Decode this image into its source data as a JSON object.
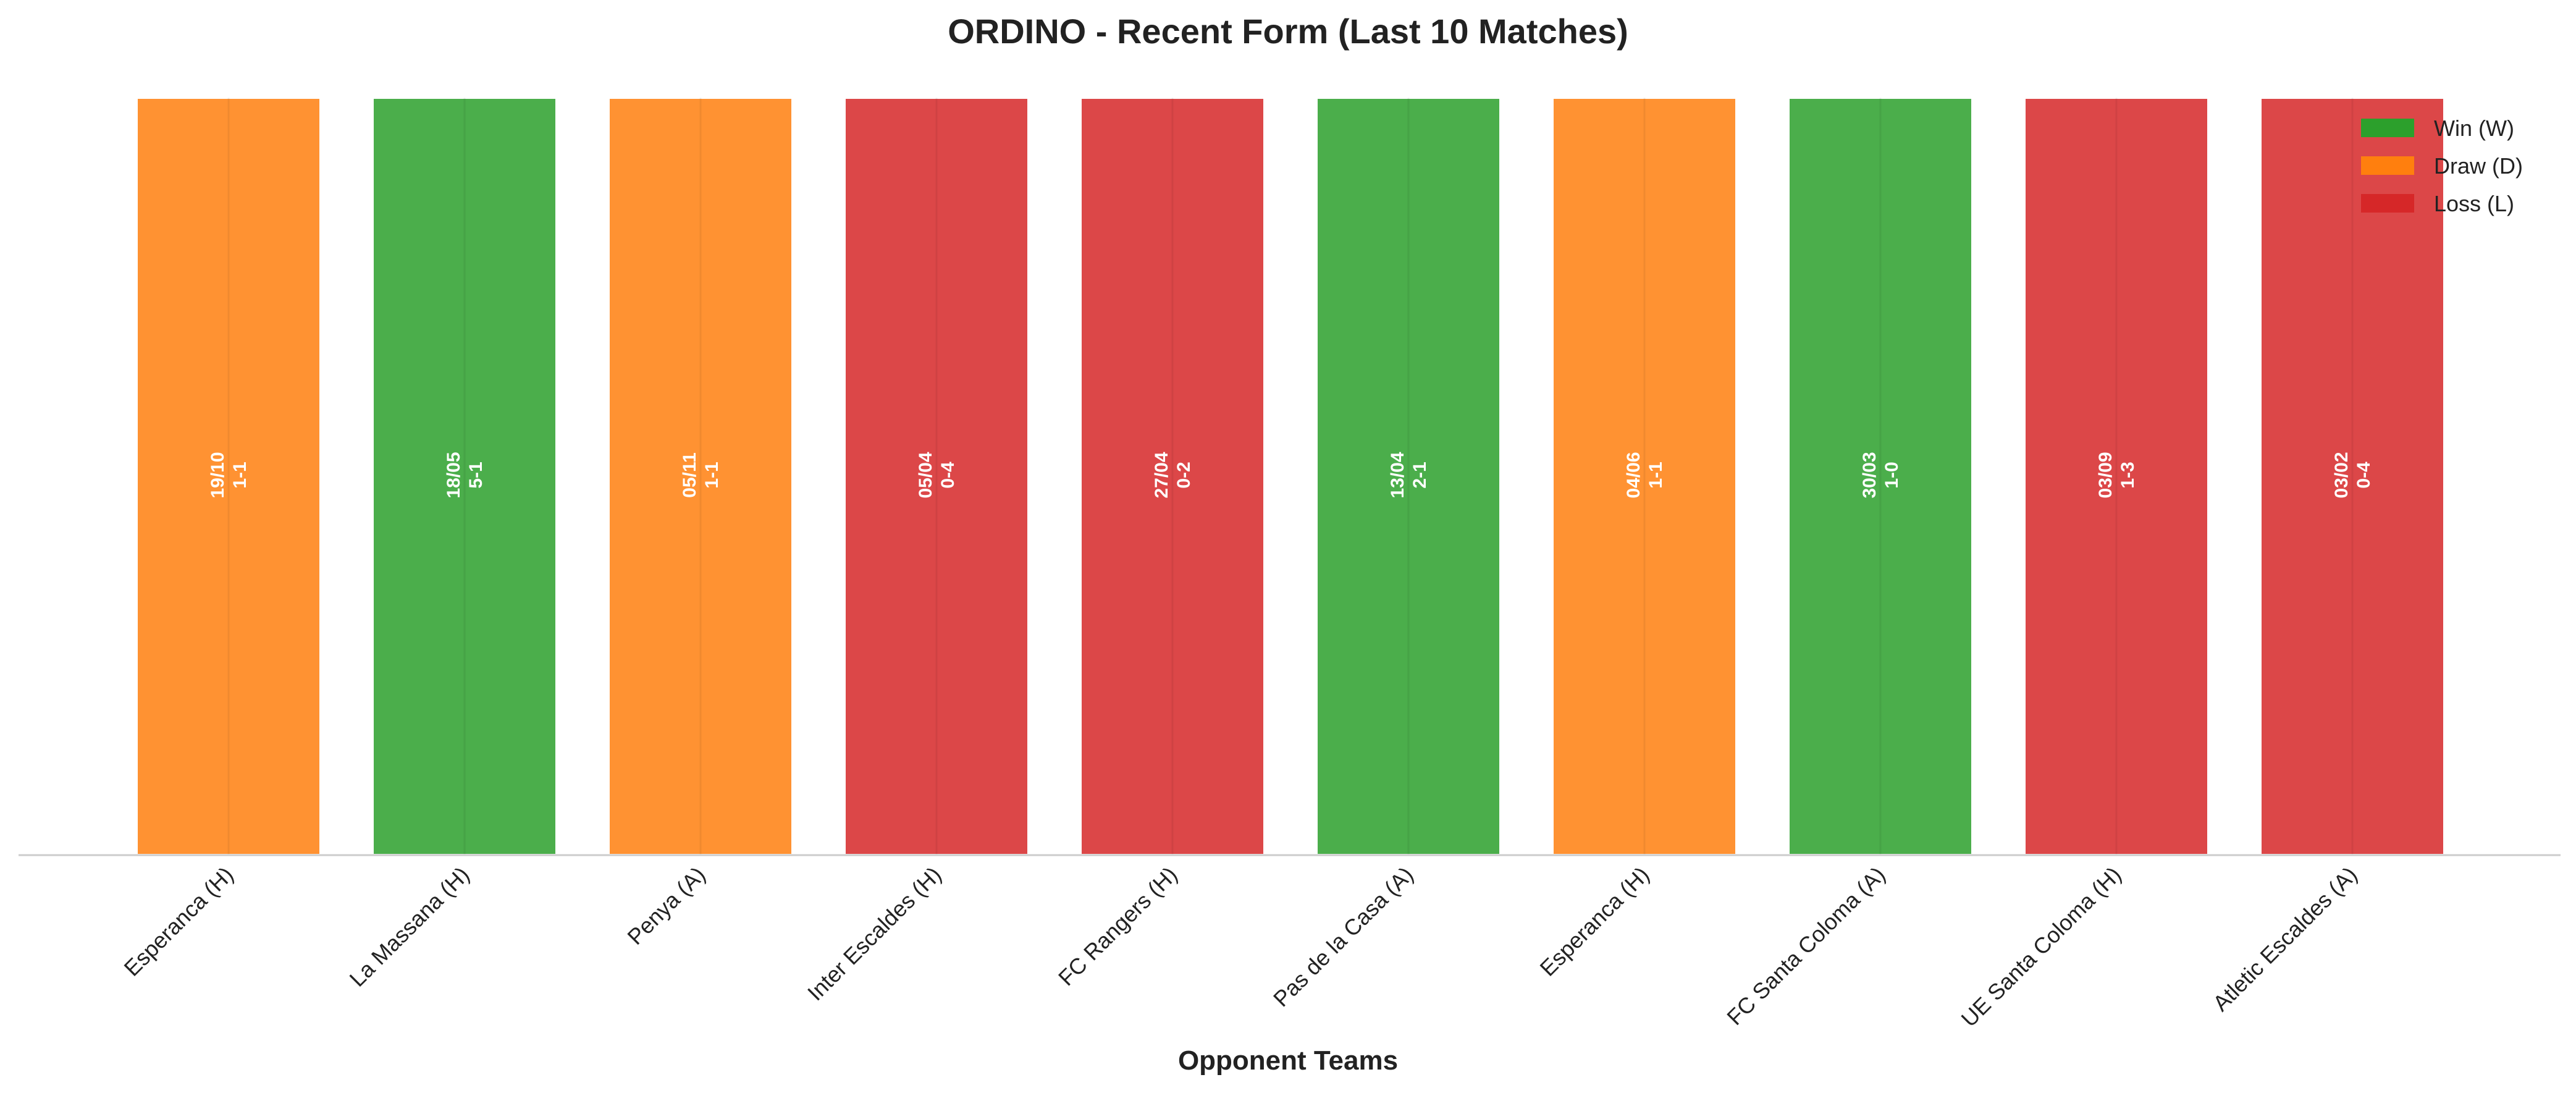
{
  "chart_data": {
    "type": "bar",
    "title": "ORDINO - Recent Form (Last 10 Matches)",
    "xlabel": "Opponent Teams",
    "ylabel": "",
    "grid": false,
    "legend_placement": "top-right",
    "categories": [
      "Esperanca (H)",
      "La Massana (H)",
      "Penya (A)",
      "Inter Escaldes (H)",
      "FC Rangers (H)",
      "Pas de la Casa (A)",
      "Esperanca (H)",
      "FC Santa Coloma (A)",
      "UE Santa Coloma (H)",
      "Atletic Escaldes (A)"
    ],
    "values": [
      1,
      1,
      1,
      1,
      1,
      1,
      1,
      1,
      1,
      1
    ],
    "ylim": [
      0,
      1
    ],
    "results": [
      "D",
      "W",
      "D",
      "L",
      "L",
      "W",
      "D",
      "W",
      "L",
      "L"
    ],
    "dates": [
      "19/10",
      "18/05",
      "05/11",
      "05/04",
      "27/04",
      "13/04",
      "04/06",
      "30/03",
      "03/09",
      "03/02"
    ],
    "scores": [
      "1-1",
      "5-1",
      "1-1",
      "0-4",
      "0-2",
      "2-1",
      "1-1",
      "1-0",
      "1-3",
      "0-4"
    ],
    "legend": [
      {
        "key": "W",
        "label": "Win (W)",
        "color": "#2ca02c"
      },
      {
        "key": "D",
        "label": "Draw (D)",
        "color": "#ff7f0e"
      },
      {
        "key": "L",
        "label": "Loss (L)",
        "color": "#d62728"
      }
    ]
  }
}
